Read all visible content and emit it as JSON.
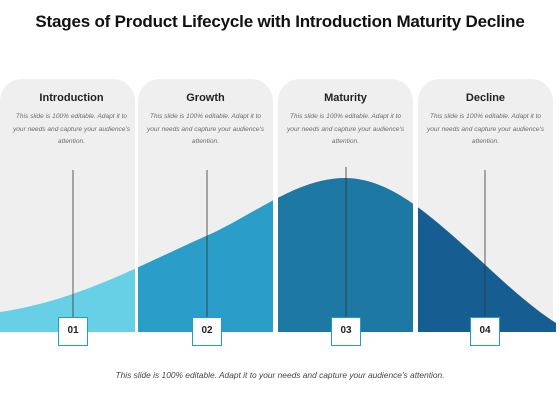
{
  "title": "Stages of Product Lifecycle with Introduction Maturity Decline",
  "stages": [
    {
      "heading": "Introduction",
      "text": "This slide is 100% editable. Adapt it to your needs and capture your audience's attention.",
      "number": "01"
    },
    {
      "heading": "Growth",
      "text": "This slide is 100% editable. Adapt it to your needs and capture your audience's attention.",
      "number": "02"
    },
    {
      "heading": "Maturity",
      "text": "This slide is 100% editable. Adapt it to your needs and capture your audience's attention.",
      "number": "03"
    },
    {
      "heading": "Decline",
      "text": "This slide is 100% editable. Adapt it to your needs and capture your audience's attention.",
      "number": "04"
    }
  ],
  "footer": "This slide is 100% editable. Adapt it to your needs and capture your audience's attention.",
  "colors": {
    "introduction": "#68d0e6",
    "growth": "#2a9dc8",
    "maturity": "#1e78a4",
    "decline": "#165d92",
    "panel": "#efefef",
    "box_border": "#1f9ec6"
  }
}
